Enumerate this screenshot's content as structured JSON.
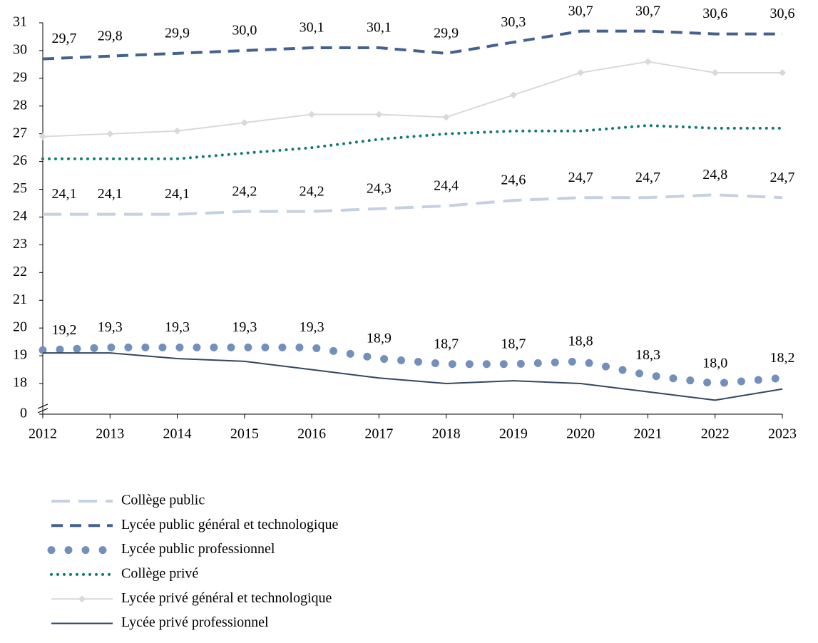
{
  "chart_data": {
    "type": "line",
    "x": [
      2012,
      2013,
      2014,
      2015,
      2016,
      2017,
      2018,
      2019,
      2020,
      2021,
      2022,
      2023
    ],
    "xlim": [
      2012,
      2023
    ],
    "xticks": [
      2012,
      2013,
      2014,
      2015,
      2016,
      2017,
      2018,
      2019,
      2020,
      2021,
      2022,
      2023
    ],
    "ylim": [
      0,
      31
    ],
    "yticks": [
      0,
      18,
      19,
      20,
      21,
      22,
      23,
      24,
      25,
      26,
      27,
      28,
      29,
      30,
      31
    ],
    "axis_break": true,
    "legend": "bottom",
    "series": [
      {
        "name": "Collège public",
        "color": "#c5d0e0",
        "line_style": "long-dash",
        "values": [
          24.1,
          24.1,
          24.1,
          24.2,
          24.2,
          24.3,
          24.4,
          24.6,
          24.7,
          24.7,
          24.8,
          24.7
        ],
        "value_labels": [
          "24,1",
          "24,1",
          "24,1",
          "24,2",
          "24,2",
          "24,3",
          "24,4",
          "24,6",
          "24,7",
          "24,7",
          "24,8",
          "24,7"
        ]
      },
      {
        "name": "Lycée public général et technologique",
        "color": "#44618f",
        "line_style": "dash",
        "values": [
          29.7,
          29.8,
          29.9,
          30.0,
          30.1,
          30.1,
          29.9,
          30.3,
          30.7,
          30.7,
          30.6,
          30.6
        ],
        "value_labels": [
          "29,7",
          "29,8",
          "29,9",
          "30,0",
          "30,1",
          "30,1",
          "29,9",
          "30,3",
          "30,7",
          "30,7",
          "30,6",
          "30,6"
        ]
      },
      {
        "name": "Lycée public professionnel",
        "color": "#7390bd",
        "line_style": "round-dot",
        "values": [
          19.2,
          19.3,
          19.3,
          19.3,
          19.3,
          18.9,
          18.7,
          18.7,
          18.8,
          18.3,
          18.0,
          18.2
        ],
        "value_labels": [
          "19,2",
          "19,3",
          "19,3",
          "19,3",
          "19,3",
          "18,9",
          "18,7",
          "18,7",
          "18,8",
          "18,3",
          "18,0",
          "18,2"
        ]
      },
      {
        "name": "Collège privé",
        "color": "#0f7a72",
        "line_style": "dot",
        "values": [
          26.1,
          26.1,
          26.1,
          26.3,
          26.5,
          26.8,
          27.0,
          27.1,
          27.1,
          27.3,
          27.2,
          27.2
        ]
      },
      {
        "name": "Lycée privé général et technologique",
        "color": "#d9d9d9",
        "line_style": "solid",
        "marker": "diamond",
        "values": [
          26.9,
          27.0,
          27.1,
          27.4,
          27.7,
          27.7,
          27.6,
          28.4,
          29.2,
          29.6,
          29.2,
          29.2
        ]
      },
      {
        "name": "Lycée privé professionnel",
        "color": "#33475f",
        "line_style": "solid",
        "values": [
          19.1,
          19.1,
          18.9,
          18.8,
          18.5,
          18.2,
          18.0,
          18.1,
          18.0,
          17.7,
          17.4,
          17.8
        ]
      }
    ]
  }
}
